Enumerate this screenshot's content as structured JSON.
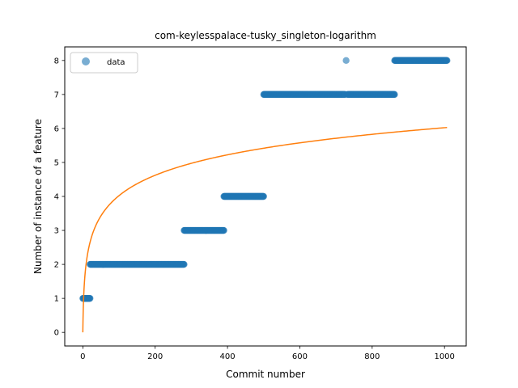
{
  "chart_data": {
    "type": "scatter",
    "title": "com-keylesspalace-tusky_singleton-logarithm",
    "xlabel": "Commit number",
    "ylabel": "Number of instance of a feature",
    "xlim": [
      -50,
      1060
    ],
    "ylim": [
      -0.4,
      8.4
    ],
    "xticks": [
      0,
      200,
      400,
      600,
      800,
      1000
    ],
    "yticks": [
      0,
      1,
      2,
      3,
      4,
      5,
      6,
      7,
      8
    ],
    "grid": false,
    "legend_position": "top-left",
    "series": [
      {
        "name": "data",
        "kind": "scatter",
        "color": "#1f77b4",
        "segments": [
          {
            "x_start": 0,
            "x_end": 20,
            "y": 1
          },
          {
            "x_start": 20,
            "x_end": 280,
            "y": 2
          },
          {
            "x_start": 280,
            "x_end": 390,
            "y": 3
          },
          {
            "x_start": 390,
            "x_end": 500,
            "y": 4
          },
          {
            "x_start": 500,
            "x_end": 725,
            "y": 7
          },
          {
            "x_start": 728,
            "x_end": 728,
            "y": 8
          },
          {
            "x_start": 732,
            "x_end": 862,
            "y": 7
          },
          {
            "x_start": 862,
            "x_end": 1007,
            "y": 8
          }
        ]
      },
      {
        "name": "",
        "kind": "line",
        "color": "#ff7f0e",
        "curve": {
          "form": "a*ln(x+1)",
          "a": 0.8716,
          "x_min": 0,
          "x_max": 1007
        }
      }
    ]
  }
}
